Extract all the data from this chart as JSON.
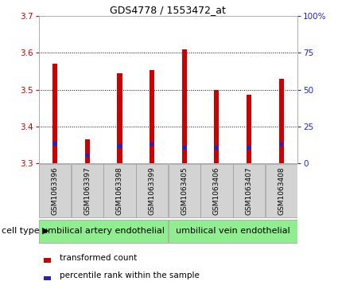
{
  "title": "GDS4778 / 1553472_at",
  "samples": [
    "GSM1063396",
    "GSM1063397",
    "GSM1063398",
    "GSM1063399",
    "GSM1063405",
    "GSM1063406",
    "GSM1063407",
    "GSM1063408"
  ],
  "red_tops": [
    3.57,
    3.365,
    3.545,
    3.552,
    3.61,
    3.5,
    3.485,
    3.53
  ],
  "blue_tops": [
    3.358,
    3.327,
    3.352,
    3.357,
    3.347,
    3.347,
    3.347,
    3.357
  ],
  "blue_bottoms": [
    3.348,
    3.318,
    3.342,
    3.347,
    3.337,
    3.337,
    3.337,
    3.347
  ],
  "bar_bottom": 3.3,
  "ylim_left": [
    3.3,
    3.7
  ],
  "ylim_right": [
    0,
    100
  ],
  "yticks_left": [
    3.3,
    3.4,
    3.5,
    3.6,
    3.7
  ],
  "yticks_right": [
    0,
    25,
    50,
    75,
    100
  ],
  "ytick_labels_right": [
    "0",
    "25",
    "50",
    "75",
    "100%"
  ],
  "group1_label": "umbilical artery endothelial",
  "group2_label": "umbilical vein endothelial",
  "cell_type_label": "cell type",
  "legend_red": "transformed count",
  "legend_blue": "percentile rank within the sample",
  "red_color": "#CC0000",
  "blue_color": "#2222CC",
  "bar_width": 0.15,
  "background_color": "#ffffff",
  "plot_bg": "#ffffff",
  "group_bg": "#90EE90",
  "sample_bg": "#D3D3D3",
  "left_tick_color": "#CC0000",
  "right_tick_color": "#2222CC",
  "title_fontsize": 9,
  "tick_fontsize": 7.5,
  "sample_fontsize": 6.5,
  "group_fontsize": 8,
  "legend_fontsize": 7.5
}
